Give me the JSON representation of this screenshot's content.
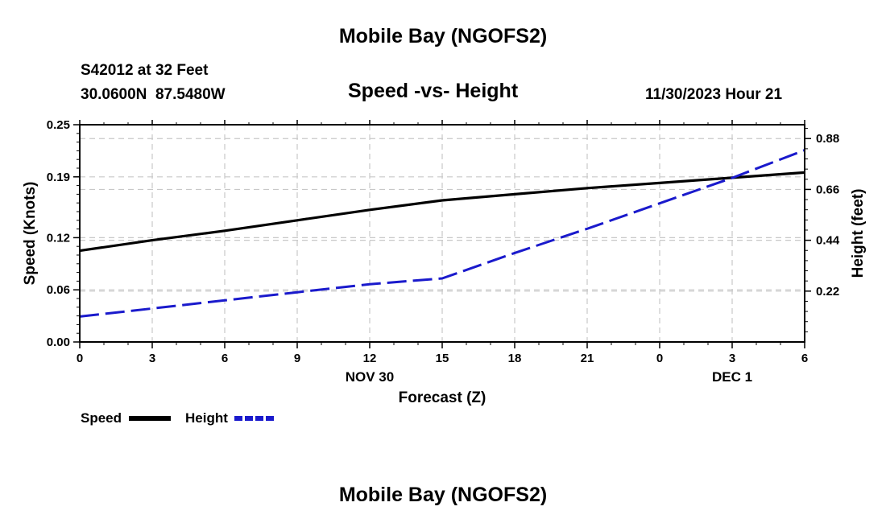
{
  "page": {
    "title": "Mobile Bay (NGOFS2)",
    "footer_title": "Mobile Bay (NGOFS2)"
  },
  "header": {
    "station": "S42012 at 32 Feet",
    "location": "30.0600N  87.5480W",
    "datetime": "11/30/2023 Hour 21"
  },
  "chart_data": {
    "type": "line",
    "title": "Speed -vs- Height",
    "xlabel": "Forecast (Z)",
    "x_hours": [
      0,
      3,
      6,
      9,
      12,
      15,
      18,
      21,
      24,
      27,
      30
    ],
    "x_tick_labels": [
      "0",
      "3",
      "6",
      "9",
      "12",
      "15",
      "18",
      "21",
      "0",
      "3",
      "6"
    ],
    "date_labels": [
      {
        "hour": 12,
        "label": "NOV 30"
      },
      {
        "hour": 27,
        "label": "DEC 1"
      }
    ],
    "xlim": [
      0,
      30
    ],
    "left_axis": {
      "label": "Speed (Knots)",
      "ylim": [
        0,
        0.25
      ],
      "ticks": [
        0,
        0.06,
        0.12,
        0.19,
        0.25
      ],
      "tick_labels": [
        "0.00",
        "0.06",
        "0.12",
        "0.19",
        "0.25"
      ]
    },
    "right_axis": {
      "label": "Height (feet)",
      "ylim": [
        0,
        0.94
      ],
      "ticks": [
        0.22,
        0.44,
        0.66,
        0.88
      ],
      "tick_labels": [
        "0.22",
        "0.44",
        "0.66",
        "0.88"
      ]
    },
    "series": [
      {
        "name": "Speed",
        "axis": "left",
        "color": "#000000",
        "style": "solid",
        "x": [
          0,
          3,
          6,
          9,
          12,
          15,
          18,
          21,
          24,
          27,
          30
        ],
        "values": [
          0.105,
          0.117,
          0.128,
          0.14,
          0.152,
          0.163,
          0.17,
          0.177,
          0.183,
          0.189,
          0.195
        ]
      },
      {
        "name": "Height",
        "axis": "right",
        "color": "#1a1acc",
        "style": "dashed",
        "x": [
          0,
          3,
          6,
          9,
          12,
          15,
          18,
          21,
          24,
          27,
          30
        ],
        "values": [
          0.11,
          0.145,
          0.18,
          0.215,
          0.25,
          0.275,
          0.385,
          0.49,
          0.6,
          0.71,
          0.83
        ]
      }
    ],
    "grid": true,
    "legend": "bottom-left"
  }
}
